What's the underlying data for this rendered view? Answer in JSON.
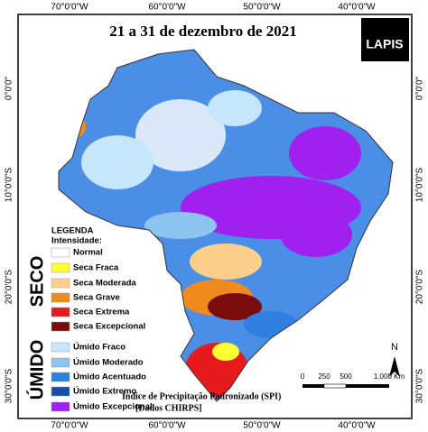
{
  "title": "21 a 31 de dezembro de 2021",
  "logo": "LAPIS",
  "coordinates": {
    "top": [
      "70°0'0\"W",
      "60°0'0\"W",
      "50°0'0\"W",
      "40°0'0\"W"
    ],
    "bottom": [
      "70°0'0\"W",
      "60°0'0\"W",
      "50°0'0\"W",
      "40°0'0\"W"
    ],
    "left": [
      "0°0'0\"",
      "10°0'0\"S",
      "20°0'0\"S",
      "30°0'0\"S"
    ],
    "right": [
      "0°0'0\"",
      "10°0'0\"S",
      "20°0'0\"S",
      "30°0'0\"S"
    ]
  },
  "legend": {
    "title": "LEGENDA",
    "subtitle": "Intensidade:",
    "dry_label": "SECO",
    "wet_label": "ÚMIDO",
    "items": [
      {
        "name": "Normal",
        "color": "#ffffff"
      },
      {
        "name": "Seca Fraca",
        "color": "#ffff33"
      },
      {
        "name": "Seca Moderada",
        "color": "#fcd08a"
      },
      {
        "name": "Seca Grave",
        "color": "#f08a1c"
      },
      {
        "name": "Seca Extrema",
        "color": "#e41a1c"
      },
      {
        "name": "Seca Excepcional",
        "color": "#7a0c0c"
      },
      {
        "name": "Úmido Fraco",
        "color": "#c6e6fb"
      },
      {
        "name": "Úmido Moderado",
        "color": "#8ec4f0"
      },
      {
        "name": "Úmido Acentuado",
        "color": "#2f7ee0"
      },
      {
        "name": "Úmido Extremo",
        "color": "#174fa8"
      },
      {
        "name": "Úmido Excepcional",
        "color": "#a020f0"
      }
    ]
  },
  "caption": [
    "Índice de Precipitação Padronizado (SPI)",
    "[Dados CHIRPS]"
  ],
  "scale": [
    "0",
    "250",
    "500",
    "1.000 Km"
  ],
  "north": "N"
}
